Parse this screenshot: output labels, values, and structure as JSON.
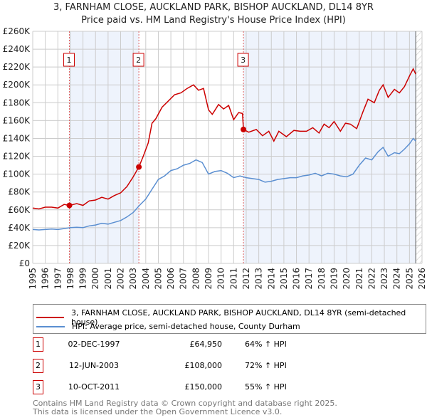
{
  "title": "3, FARNHAM CLOSE, AUCKLAND PARK, BISHOP AUCKLAND, DL14 8YR",
  "subtitle": "Price paid vs. HM Land Registry's House Price Index (HPI)",
  "colors": {
    "property": "#cc0000",
    "hpi": "#5b8fd1",
    "shade": "#eef3fc"
  },
  "chart_data": {
    "type": "line",
    "xlim": [
      1995,
      2026
    ],
    "ylim": [
      0,
      260000
    ],
    "x_ticks": [
      "1995",
      "1996",
      "1997",
      "1998",
      "1999",
      "2000",
      "2001",
      "2002",
      "2003",
      "2004",
      "2005",
      "2006",
      "2007",
      "2008",
      "2009",
      "2010",
      "2011",
      "2012",
      "2013",
      "2014",
      "2015",
      "2016",
      "2017",
      "2018",
      "2019",
      "2020",
      "2021",
      "2022",
      "2023",
      "2024",
      "2025",
      "2026"
    ],
    "y_ticks": [
      {
        "v": 0,
        "label": "£0"
      },
      {
        "v": 20000,
        "label": "£20K"
      },
      {
        "v": 40000,
        "label": "£40K"
      },
      {
        "v": 60000,
        "label": "£60K"
      },
      {
        "v": 80000,
        "label": "£80K"
      },
      {
        "v": 100000,
        "label": "£100K"
      },
      {
        "v": 120000,
        "label": "£120K"
      },
      {
        "v": 140000,
        "label": "£140K"
      },
      {
        "v": 160000,
        "label": "£160K"
      },
      {
        "v": 180000,
        "label": "£180K"
      },
      {
        "v": 200000,
        "label": "£200K"
      },
      {
        "v": 220000,
        "label": "£220K"
      },
      {
        "v": 240000,
        "label": "£240K"
      },
      {
        "v": 260000,
        "label": "£260K"
      }
    ],
    "grid": true,
    "series": [
      {
        "name": "3, FARNHAM CLOSE, AUCKLAND PARK, BISHOP AUCKLAND, DL14 8YR (semi-detached house)",
        "x": [
          1995,
          1995.5,
          1996,
          1996.5,
          1997,
          1997.5,
          1997.92,
          1998.5,
          1999,
          1999.5,
          2000,
          2000.5,
          2001,
          2001.5,
          2002,
          2002.5,
          2003,
          2003.45,
          2003.8,
          2004.2,
          2004.5,
          2004.8,
          2005.3,
          2005.8,
          2006.3,
          2006.8,
          2007.3,
          2007.8,
          2008.2,
          2008.6,
          2009.0,
          2009.3,
          2009.8,
          2010.2,
          2010.6,
          2011.0,
          2011.4,
          2011.7,
          2011.78,
          2012.2,
          2012.8,
          2013.3,
          2013.8,
          2014.2,
          2014.6,
          2015.2,
          2015.8,
          2016.3,
          2016.8,
          2017.3,
          2017.8,
          2018.2,
          2018.6,
          2019.0,
          2019.5,
          2019.9,
          2020.3,
          2020.8,
          2021.3,
          2021.7,
          2022.2,
          2022.6,
          2022.9,
          2023.3,
          2023.8,
          2024.2,
          2024.6,
          2025.0,
          2025.3,
          2025.5
        ],
        "y": [
          62000,
          61000,
          63000,
          63000,
          62000,
          66000,
          64950,
          67000,
          65000,
          70000,
          71000,
          74000,
          72000,
          76000,
          79000,
          86000,
          97000,
          108000,
          120000,
          135000,
          157000,
          162000,
          175000,
          182000,
          189000,
          191000,
          196000,
          200000,
          194000,
          196000,
          172000,
          167000,
          178000,
          173000,
          177000,
          161000,
          169000,
          168000,
          150000,
          147000,
          150000,
          143000,
          148000,
          137000,
          148000,
          142000,
          149000,
          148000,
          148000,
          152000,
          146000,
          156000,
          152000,
          159000,
          148000,
          157000,
          156000,
          151000,
          170000,
          184000,
          180000,
          194000,
          200000,
          186000,
          195000,
          191000,
          198000,
          210000,
          218000,
          212000
        ]
      },
      {
        "name": "HPI: Average price, semi-detached house, County Durham",
        "x": [
          1995,
          1995.5,
          1996,
          1996.5,
          1997,
          1997.5,
          1998,
          1998.5,
          1999,
          1999.5,
          2000,
          2000.5,
          2001,
          2001.5,
          2002,
          2002.5,
          2003,
          2003.5,
          2004,
          2004.5,
          2005,
          2005.5,
          2006,
          2006.5,
          2007,
          2007.5,
          2008,
          2008.5,
          2009,
          2009.5,
          2010,
          2010.5,
          2011,
          2011.5,
          2012,
          2012.5,
          2013,
          2013.5,
          2014,
          2014.5,
          2015,
          2015.5,
          2016,
          2016.5,
          2017,
          2017.5,
          2018,
          2018.5,
          2019,
          2019.5,
          2020,
          2020.5,
          2021,
          2021.5,
          2022,
          2022.5,
          2022.9,
          2023.3,
          2023.8,
          2024.2,
          2024.6,
          2025.0,
          2025.3,
          2025.5
        ],
        "y": [
          38000,
          37500,
          38000,
          38500,
          38000,
          39000,
          40000,
          40500,
          40000,
          42000,
          43000,
          45000,
          44000,
          46000,
          48000,
          52000,
          57000,
          65000,
          72000,
          83000,
          94000,
          98000,
          104000,
          106000,
          110000,
          112000,
          116000,
          113000,
          100000,
          103000,
          104000,
          101000,
          96000,
          98000,
          96000,
          95000,
          94000,
          91000,
          92000,
          94000,
          95000,
          96000,
          96000,
          98000,
          99000,
          101000,
          98000,
          101000,
          100000,
          98000,
          97000,
          100000,
          110000,
          118000,
          116000,
          125000,
          130000,
          120000,
          124000,
          123000,
          128000,
          134000,
          140000,
          137000
        ]
      }
    ],
    "sales": [
      {
        "label": "1",
        "x": 1997.92,
        "y": 64950
      },
      {
        "label": "2",
        "x": 2003.45,
        "y": 108000
      },
      {
        "label": "3",
        "x": 2011.78,
        "y": 150000
      }
    ],
    "shaded_ranges": [
      [
        1997.92,
        2003.45
      ],
      [
        2011.78,
        2025.5
      ]
    ],
    "future_hatch_from": 2025.5
  },
  "legend": {
    "property": "3, FARNHAM CLOSE, AUCKLAND PARK, BISHOP AUCKLAND, DL14 8YR (semi-detached house)",
    "hpi": "HPI: Average price, semi-detached house, County Durham"
  },
  "transactions": [
    {
      "num": "1",
      "date": "02-DEC-1997",
      "price": "£64,950",
      "hpi": "64% ↑ HPI"
    },
    {
      "num": "2",
      "date": "12-JUN-2003",
      "price": "£108,000",
      "hpi": "72% ↑ HPI"
    },
    {
      "num": "3",
      "date": "10-OCT-2011",
      "price": "£150,000",
      "hpi": "55% ↑ HPI"
    }
  ],
  "footer": {
    "line1": "Contains HM Land Registry data © Crown copyright and database right 2025.",
    "line2": "This data is licensed under the Open Government Licence v3.0."
  }
}
